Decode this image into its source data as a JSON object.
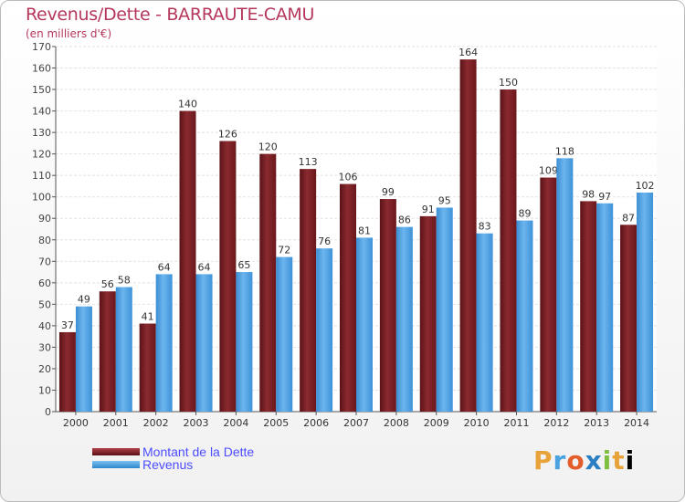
{
  "header": {
    "title": "Revenus/Dette - BARRAUTE-CAMU",
    "subtitle": "(en milliers d'€)"
  },
  "legend": {
    "items": [
      {
        "label": "Montant de la Dette",
        "color": "#7a1c22"
      },
      {
        "label": "Revenus",
        "color": "#4a9fe0"
      }
    ]
  },
  "logo": {
    "text": "Proxiti"
  },
  "colors": {
    "dette": "#7a1c22",
    "revenus": "#4a9fe0",
    "grid": "#e0e0e0",
    "title": "#b5385c"
  },
  "chart_data": {
    "type": "bar",
    "title": "Revenus/Dette - BARRAUTE-CAMU",
    "subtitle": "(en milliers d'€)",
    "xlabel": "",
    "ylabel": "",
    "ylim": [
      0,
      170
    ],
    "yticks": [
      0,
      10,
      20,
      30,
      40,
      50,
      60,
      70,
      80,
      90,
      100,
      110,
      120,
      130,
      140,
      150,
      160,
      170
    ],
    "grid": true,
    "legend_position": "bottom-left",
    "categories": [
      "2000",
      "2001",
      "2002",
      "2003",
      "2004",
      "2005",
      "2006",
      "2007",
      "2008",
      "2009",
      "2010",
      "2011",
      "2012",
      "2013",
      "2014"
    ],
    "series": [
      {
        "name": "Montant de la Dette",
        "values": [
          37,
          56,
          41,
          140,
          126,
          120,
          113,
          106,
          99,
          91,
          164,
          150,
          109,
          98,
          87
        ]
      },
      {
        "name": "Revenus",
        "values": [
          49,
          58,
          64,
          64,
          65,
          72,
          76,
          81,
          86,
          95,
          83,
          89,
          118,
          97,
          102
        ]
      }
    ]
  }
}
